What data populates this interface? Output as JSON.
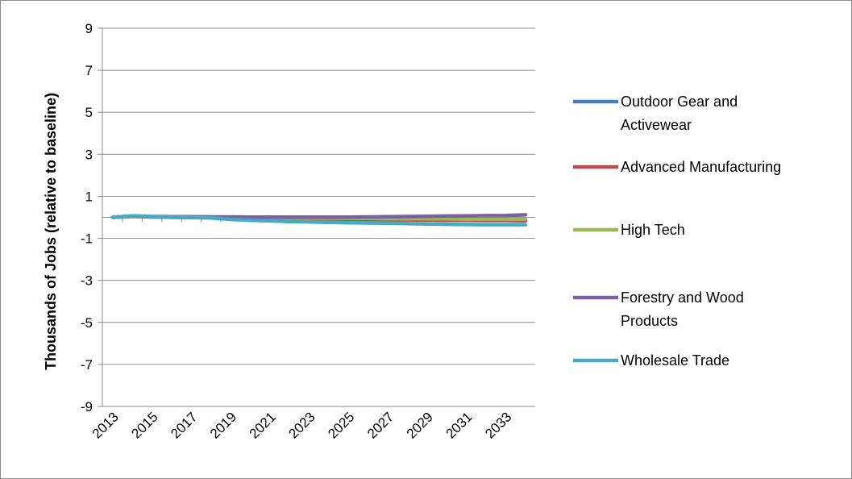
{
  "chart_data": {
    "type": "line",
    "title": "",
    "xlabel": "",
    "ylabel": "Thousands of Jobs (relative to baseline)",
    "ylim": [
      -9,
      9
    ],
    "yticks": [
      9,
      7,
      5,
      3,
      1,
      -1,
      -3,
      -5,
      -7,
      -9
    ],
    "x": [
      2013,
      2014,
      2015,
      2016,
      2017,
      2018,
      2019,
      2020,
      2021,
      2022,
      2023,
      2024,
      2025,
      2026,
      2027,
      2028,
      2029,
      2030,
      2031,
      2032,
      2033,
      2034
    ],
    "xtick_labels": [
      "2013",
      "2015",
      "2017",
      "2019",
      "2021",
      "2023",
      "2025",
      "2027",
      "2029",
      "2031",
      "2033"
    ],
    "grid": true,
    "legend_position": "right",
    "series": [
      {
        "name": "Outdoor Gear and Activewear",
        "color": "#4a7ebb",
        "values": [
          0.0,
          0.05,
          0.02,
          0.01,
          0.0,
          -0.01,
          -0.02,
          -0.03,
          -0.04,
          -0.05,
          -0.06,
          -0.07,
          -0.08,
          -0.08,
          -0.09,
          -0.1,
          -0.1,
          -0.11,
          -0.12,
          -0.12,
          -0.13,
          -0.14
        ]
      },
      {
        "name": "Advanced Manufacturing",
        "color": "#be4b48",
        "values": [
          0.0,
          0.05,
          0.02,
          0.0,
          -0.01,
          -0.02,
          -0.04,
          -0.05,
          -0.06,
          -0.07,
          -0.08,
          -0.09,
          -0.1,
          -0.11,
          -0.12,
          -0.12,
          -0.13,
          -0.14,
          -0.14,
          -0.15,
          -0.15,
          -0.16
        ]
      },
      {
        "name": "High Tech",
        "color": "#98b954",
        "values": [
          0.0,
          0.06,
          0.03,
          0.02,
          0.01,
          0.0,
          -0.01,
          -0.02,
          -0.02,
          -0.03,
          -0.04,
          -0.04,
          -0.05,
          -0.05,
          -0.06,
          -0.06,
          -0.07,
          -0.07,
          -0.08,
          -0.08,
          -0.08,
          -0.09
        ]
      },
      {
        "name": "Forestry and Wood Products",
        "color": "#7d60a0",
        "values": [
          0.0,
          0.06,
          0.04,
          0.03,
          0.03,
          0.02,
          0.02,
          0.01,
          0.01,
          0.01,
          0.01,
          0.01,
          0.01,
          0.02,
          0.03,
          0.04,
          0.05,
          0.06,
          0.07,
          0.08,
          0.09,
          0.12
        ]
      },
      {
        "name": "Wholesale Trade",
        "color": "#46aac5",
        "values": [
          0.0,
          0.07,
          0.03,
          0.01,
          0.0,
          -0.03,
          -0.1,
          -0.14,
          -0.17,
          -0.2,
          -0.22,
          -0.24,
          -0.26,
          -0.27,
          -0.28,
          -0.3,
          -0.32,
          -0.33,
          -0.34,
          -0.35,
          -0.35,
          -0.35
        ]
      }
    ]
  }
}
